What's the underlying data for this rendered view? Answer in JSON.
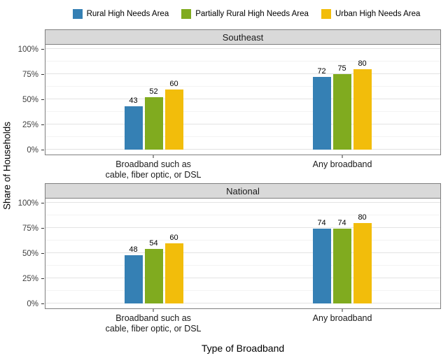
{
  "legend": {
    "items": [
      {
        "label": "Rural High Needs Area",
        "color": "#3580B4"
      },
      {
        "label": "Partially Rural High Needs Area",
        "color": "#80AB1F"
      },
      {
        "label": "Urban High Needs Area",
        "color": "#F2BD0B"
      }
    ]
  },
  "chart_data": {
    "type": "bar",
    "facets": [
      "Southeast",
      "National"
    ],
    "categories": [
      "Broadband such as\ncable, fiber optic, or DSL",
      "Any broadband"
    ],
    "series_names": [
      "Rural High Needs Area",
      "Partially Rural High Needs Area",
      "Urban High Needs Area"
    ],
    "panels": [
      {
        "title": "Southeast",
        "groups": [
          {
            "category_lines": [
              "Broadband such as",
              "cable, fiber optic, or DSL"
            ],
            "values": [
              43,
              52,
              60
            ]
          },
          {
            "category_lines": [
              "Any broadband"
            ],
            "values": [
              72,
              75,
              80
            ]
          }
        ]
      },
      {
        "title": "National",
        "groups": [
          {
            "category_lines": [
              "Broadband such as",
              "cable, fiber optic, or DSL"
            ],
            "values": [
              48,
              54,
              60
            ]
          },
          {
            "category_lines": [
              "Any broadband"
            ],
            "values": [
              74,
              74,
              80
            ]
          }
        ]
      }
    ],
    "y_ticks": [
      {
        "label": "0%",
        "value": 0
      },
      {
        "label": "25%",
        "value": 25
      },
      {
        "label": "50%",
        "value": 50
      },
      {
        "label": "75%",
        "value": 75
      },
      {
        "label": "100%",
        "value": 100
      }
    ],
    "ylim": [
      0,
      100
    ],
    "ylabel": "Share of Households",
    "xlabel": "Type of Broadband",
    "grid": "horizontal major every 25% + minor every 12.5%",
    "legend_position": "top",
    "colors": {
      "rural": "#3580B4",
      "partially_rural": "#80AB1F",
      "urban": "#F2BD0B",
      "strip_bg": "#D9D9D9",
      "panel_border": "#7F7F7F",
      "grid_major": "#E3E3E3",
      "grid_minor": "#F3F3F3"
    }
  }
}
